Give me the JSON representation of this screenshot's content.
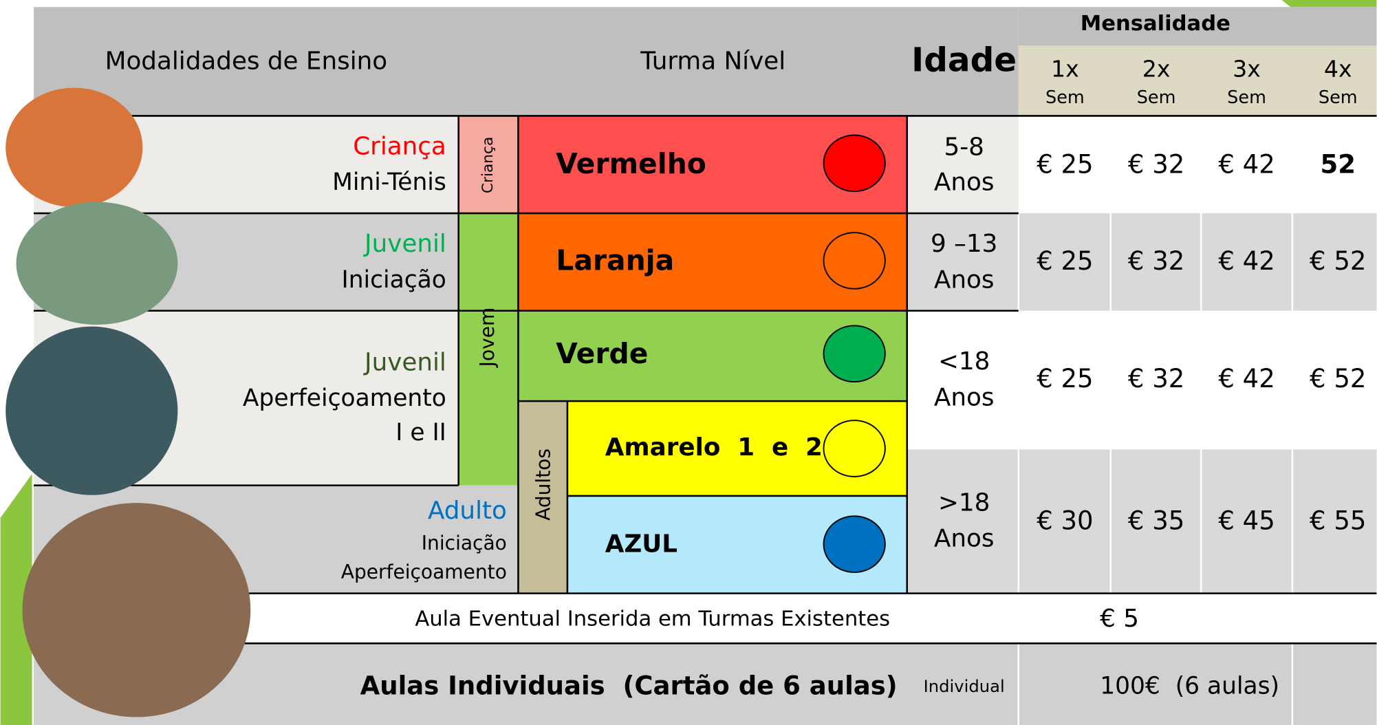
{
  "header": {
    "modalidades": "Modalidades de Ensino",
    "turma_nivel": "Turma Nível",
    "idade": "Idade",
    "mensalidade": "Mensalidade",
    "frequencies": [
      {
        "count": "1x",
        "unit": "Sem"
      },
      {
        "count": "2x",
        "unit": "Sem"
      },
      {
        "count": "3x",
        "unit": "Sem"
      },
      {
        "count": "4x",
        "unit": "Sem"
      }
    ]
  },
  "groups": {
    "crianca": "Criança",
    "jovem": "Jovem",
    "adultos": "Adultos"
  },
  "rows": [
    {
      "category": "Criança",
      "lines": [
        "Mini-Ténis"
      ],
      "levels": [
        "Vermelho"
      ],
      "age": [
        "5-8",
        "Anos"
      ],
      "prices": [
        "€ 25",
        "€ 32",
        "€ 42",
        "52"
      ]
    },
    {
      "category": "Juvenil",
      "lines": [
        "Iniciação"
      ],
      "levels": [
        "Laranja"
      ],
      "age": [
        "9 –13",
        "Anos"
      ],
      "prices": [
        "€ 25",
        "€ 32",
        "€ 42",
        "€ 52"
      ]
    },
    {
      "category": "Juvenil",
      "lines": [
        "Aperfeiçoamento",
        "I e II"
      ],
      "levels": [
        "Verde"
      ],
      "age": [
        "<18",
        "Anos"
      ],
      "prices": [
        "€ 25",
        "€ 32",
        "€ 42",
        "€ 52"
      ]
    },
    {
      "category": "Adulto",
      "lines": [
        "Iniciação",
        "Aperfeiçoamento"
      ],
      "levels": [
        "Amarelo  1  e  2",
        "AZUL"
      ],
      "age": [
        ">18",
        "Anos"
      ],
      "prices": [
        "€ 30",
        "€ 35",
        "€ 45",
        "€ 55"
      ]
    }
  ],
  "eventual": {
    "label": "Aula Eventual Inserida em Turmas Existentes",
    "price": "€ 5"
  },
  "individual": {
    "label": "Aulas Individuais  (Cartão de 6 aulas)",
    "type": "Individual",
    "price": "100€  (6 aulas)"
  }
}
